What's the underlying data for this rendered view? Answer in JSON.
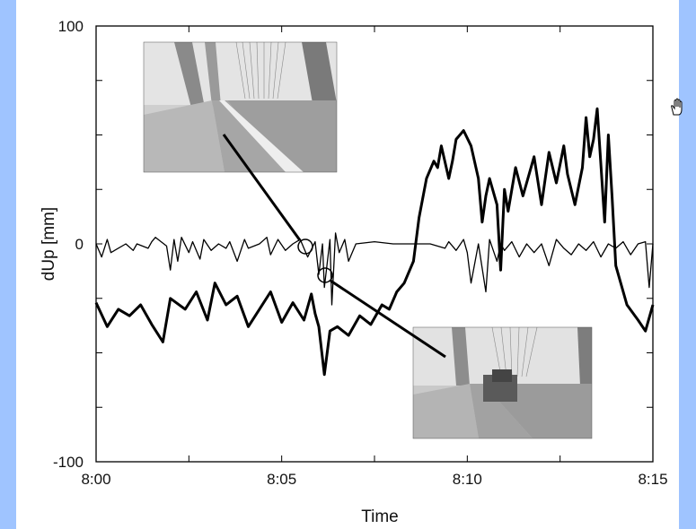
{
  "chart_data": {
    "type": "line",
    "title": "",
    "xlabel": "Time",
    "ylabel": "dUp [mm]",
    "xlim": [
      0,
      15
    ],
    "ylim": [
      -100,
      100
    ],
    "x_tick_labels": [
      "8:00",
      "8:05",
      "8:10",
      "8:15"
    ],
    "y_tick_labels": [
      "100",
      "0",
      "-100"
    ],
    "grid": false,
    "series": [
      {
        "style": "thick",
        "x": [
          0,
          0.3,
          0.6,
          0.9,
          1.2,
          1.5,
          1.8,
          2.0,
          2.4,
          2.7,
          3.0,
          3.2,
          3.5,
          3.8,
          4.1,
          4.4,
          4.7,
          5.0,
          5.3,
          5.6,
          5.8,
          5.9,
          6.0,
          6.15,
          6.3,
          6.5,
          6.8,
          7.1,
          7.4,
          7.7,
          7.9,
          8.1,
          8.3,
          8.5,
          8.55,
          8.7,
          8.9,
          9.1,
          9.2,
          9.3,
          9.5,
          9.6,
          9.7,
          9.9,
          10.1,
          10.3,
          10.4,
          10.5,
          10.6,
          10.8,
          10.9,
          11.0,
          11.1,
          11.3,
          11.5,
          11.8,
          12.0,
          12.2,
          12.4,
          12.6,
          12.7,
          12.9,
          13.1,
          13.2,
          13.3,
          13.4,
          13.5,
          13.7,
          13.8,
          13.9,
          14.0,
          14.3,
          14.6,
          14.8,
          15.0
        ],
        "y": [
          -27,
          -38,
          -30,
          -33,
          -28,
          -37,
          -45,
          -25,
          -30,
          -22,
          -35,
          -18,
          -28,
          -24,
          -38,
          -30,
          -22,
          -36,
          -27,
          -35,
          -23,
          -32,
          -38,
          -60,
          -40,
          -38,
          -42,
          -33,
          -37,
          -28,
          -30,
          -22,
          -18,
          -10,
          -8,
          12,
          30,
          38,
          35,
          45,
          30,
          38,
          48,
          52,
          45,
          30,
          10,
          22,
          30,
          18,
          -12,
          25,
          15,
          35,
          22,
          40,
          18,
          42,
          28,
          45,
          32,
          18,
          35,
          58,
          40,
          48,
          62,
          10,
          50,
          22,
          -10,
          -28,
          -35,
          -40,
          -28
        ]
      },
      {
        "style": "thin",
        "x": [
          0,
          0.15,
          0.3,
          0.4,
          0.8,
          1.0,
          1.1,
          1.4,
          1.5,
          1.6,
          1.9,
          2.0,
          2.1,
          2.2,
          2.3,
          2.5,
          2.6,
          2.8,
          2.9,
          3.1,
          3.3,
          3.5,
          3.6,
          3.8,
          4.0,
          4.1,
          4.4,
          4.6,
          4.7,
          4.9,
          5.1,
          5.3,
          5.5,
          5.7,
          5.9,
          6.0,
          6.1,
          6.15,
          6.3,
          6.35,
          6.45,
          6.55,
          6.7,
          6.8,
          7.0,
          7.5,
          8.0,
          8.5,
          9.0,
          9.4,
          9.5,
          9.7,
          9.9,
          10.0,
          10.1,
          10.3,
          10.5,
          10.6,
          10.8,
          10.9,
          11.0,
          11.2,
          11.4,
          11.6,
          11.8,
          12.0,
          12.2,
          12.4,
          12.6,
          12.8,
          13.0,
          13.2,
          13.4,
          13.6,
          13.8,
          14.0,
          14.2,
          14.4,
          14.6,
          14.8,
          14.9,
          15.0
        ],
        "y": [
          0,
          -6,
          2,
          -4,
          0,
          -3,
          0,
          -2,
          1,
          3,
          -1,
          -12,
          2,
          -8,
          3,
          -4,
          1,
          -7,
          2,
          -3,
          0,
          -2,
          1,
          -8,
          2,
          -2,
          0,
          3,
          -5,
          2,
          -3,
          0,
          2,
          -6,
          1,
          -14,
          0,
          -20,
          2,
          -28,
          5,
          -4,
          2,
          -8,
          0,
          1,
          0,
          0,
          0,
          -2,
          1,
          -3,
          2,
          -4,
          -18,
          0,
          -22,
          2,
          -8,
          0,
          -3,
          1,
          -6,
          0,
          -4,
          0,
          -10,
          2,
          -2,
          -5,
          0,
          -3,
          1,
          -6,
          0,
          -2,
          1,
          -5,
          0,
          1,
          -20,
          0
        ]
      }
    ],
    "annotations": [
      {
        "label": "bridge-lane-photo-empty",
        "marker_x": 5.55,
        "marker_y": 0
      },
      {
        "label": "bridge-lane-photo-truck",
        "marker_x": 6.1,
        "marker_y": -14
      }
    ]
  },
  "colors": {
    "slide_border": "#9fc4ff",
    "line": "#000000",
    "background": "#ffffff"
  },
  "icons": {
    "cursor": "hand-cursor-icon"
  }
}
